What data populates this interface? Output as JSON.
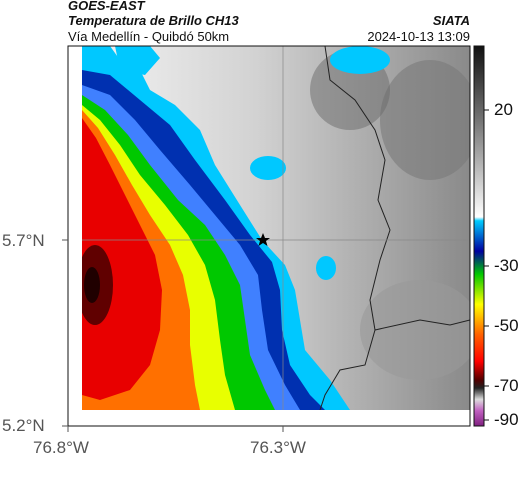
{
  "header": {
    "source": "GOES-EAST",
    "product": "Temperatura de Brillo CH13",
    "subtitle": "Vía Medellín - Quibdó 50km",
    "agency": "SIATA",
    "timestamp": "2024-10-13 13:09"
  },
  "map": {
    "lat_ticks": [
      "5.7°N",
      "5.2°N"
    ],
    "lon_ticks": [
      "76.8°W",
      "76.3°W"
    ],
    "marker_icon": "star-icon"
  },
  "colorbar": {
    "ticks": [
      "20",
      "-30",
      "-50",
      "-70",
      "-90"
    ],
    "scale_colors": [
      "#000000",
      "#ffffff",
      "#00c8ff",
      "#0000a0",
      "#00ff00",
      "#ffff00",
      "#ff0000",
      "#600000",
      "#ffffff",
      "#a040a0"
    ]
  }
}
